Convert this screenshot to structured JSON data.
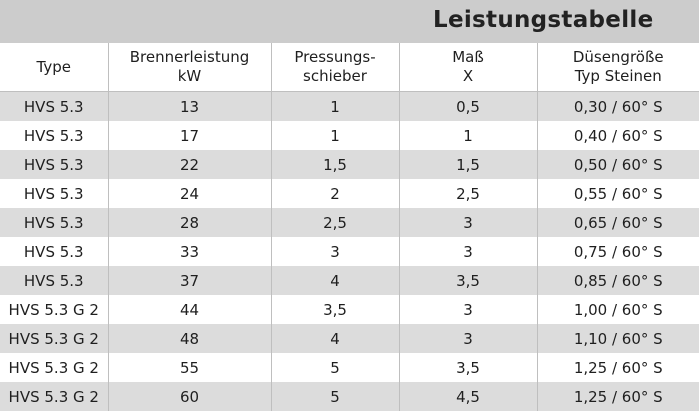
{
  "title": "Leistungstabelle",
  "headers": [
    {
      "line1": "Type",
      "line2": ""
    },
    {
      "line1": "Brennerleistung",
      "line2": "kW"
    },
    {
      "line1": "Pressungs-",
      "line2": "schieber"
    },
    {
      "line1": "Maß",
      "line2": "X"
    },
    {
      "line1": "Düsengröße",
      "line2": "Typ Steinen"
    }
  ],
  "rows": [
    [
      "HVS 5.3",
      "13",
      "1",
      "0,5",
      "0,30 / 60° S"
    ],
    [
      "HVS 5.3",
      "17",
      "1",
      "1",
      "0,40 / 60° S"
    ],
    [
      "HVS 5.3",
      "22",
      "1,5",
      "1,5",
      "0,50 / 60° S"
    ],
    [
      "HVS 5.3",
      "24",
      "2",
      "2,5",
      "0,55 / 60° S"
    ],
    [
      "HVS 5.3",
      "28",
      "2,5",
      "3",
      "0,65 / 60° S"
    ],
    [
      "HVS 5.3",
      "33",
      "3",
      "3",
      "0,75 / 60° S"
    ],
    [
      "HVS 5.3",
      "37",
      "4",
      "3,5",
      "0,85 / 60° S"
    ],
    [
      "HVS 5.3 G 2",
      "44",
      "3,5",
      "3",
      "1,00 / 60° S"
    ],
    [
      "HVS 5.3 G 2",
      "48",
      "4",
      "3",
      "1,10 / 60° S"
    ],
    [
      "HVS 5.3 G 2",
      "55",
      "5",
      "3,5",
      "1,25 / 60° S"
    ],
    [
      "HVS 5.3 G 2",
      "60",
      "5",
      "4,5",
      "1,25 / 60° S"
    ]
  ]
}
